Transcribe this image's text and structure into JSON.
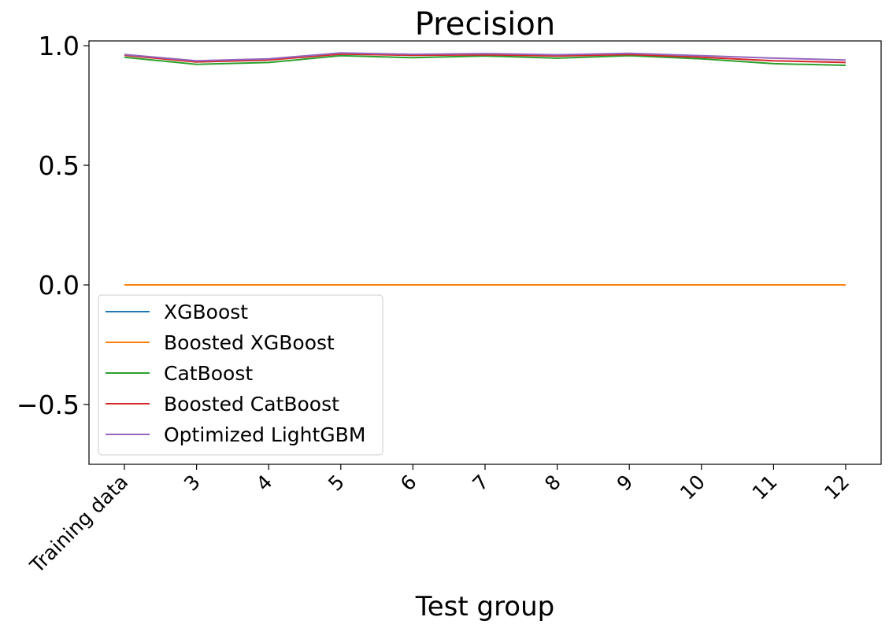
{
  "chart_data": {
    "type": "line",
    "title": "Precision",
    "xlabel": "Test group",
    "ylabel": "",
    "categories": [
      "Training data",
      "3",
      "4",
      "5",
      "6",
      "7",
      "8",
      "9",
      "10",
      "11",
      "12"
    ],
    "ylim": [
      -0.75,
      1.02
    ],
    "yticks": [
      -0.5,
      0.0,
      0.5,
      1.0
    ],
    "ytick_labels": [
      "−0.5",
      "0.0",
      "0.5",
      "1.0"
    ],
    "grid": false,
    "legend_position": "lower-left",
    "series": [
      {
        "name": "XGBoost",
        "color": "#1f77b4",
        "values": [
          0.0,
          0.0,
          0.0,
          0.0,
          0.0,
          0.0,
          0.0,
          0.0,
          0.0,
          0.0,
          0.0
        ]
      },
      {
        "name": "Boosted XGBoost",
        "color": "#ff7f0e",
        "values": [
          0.0,
          0.0,
          0.0,
          0.0,
          0.0,
          0.0,
          0.0,
          0.0,
          0.0,
          0.0,
          0.0
        ]
      },
      {
        "name": "CatBoost",
        "color": "#2ca02c",
        "values": [
          0.952,
          0.922,
          0.93,
          0.958,
          0.95,
          0.957,
          0.948,
          0.958,
          0.945,
          0.925,
          0.918
        ]
      },
      {
        "name": "Boosted CatBoost",
        "color": "#d62728",
        "values": [
          0.96,
          0.932,
          0.94,
          0.965,
          0.96,
          0.962,
          0.957,
          0.963,
          0.952,
          0.937,
          0.93
        ]
      },
      {
        "name": "Optimized LightGBM",
        "color": "#9467bd",
        "values": [
          0.963,
          0.937,
          0.945,
          0.97,
          0.964,
          0.967,
          0.962,
          0.968,
          0.958,
          0.948,
          0.94
        ]
      }
    ]
  }
}
